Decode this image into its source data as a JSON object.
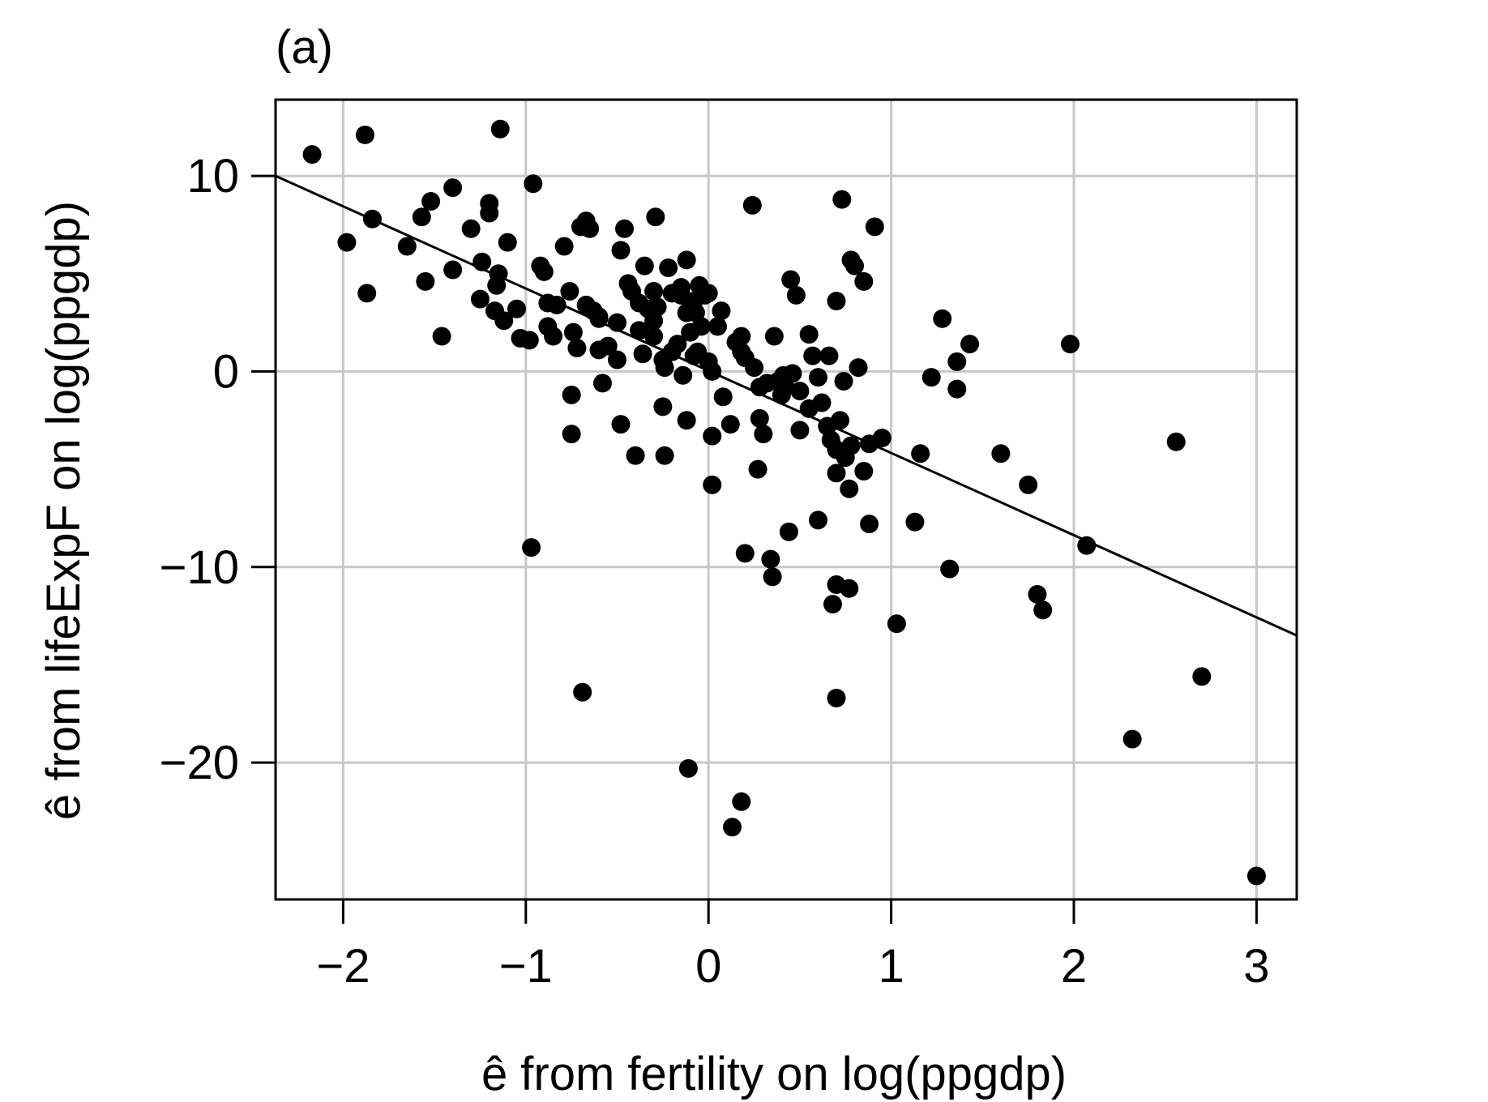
{
  "chart_data": {
    "type": "scatter",
    "panel_label": "(a)",
    "xlabel": "ê from fertility on log(ppgdp)",
    "ylabel": "ê from lifeExpF on log(ppgdp)",
    "xlim": [
      -2.37,
      3.22
    ],
    "ylim": [
      -27.0,
      13.9
    ],
    "xticks": [
      -2,
      -1,
      0,
      1,
      2,
      3
    ],
    "xtick_labels": [
      "−2",
      "−1",
      "0",
      "1",
      "2",
      "3"
    ],
    "yticks": [
      -20,
      -10,
      0,
      10
    ],
    "ytick_labels": [
      "−20",
      "−10",
      "0",
      "10"
    ],
    "grid": true,
    "fit_line": {
      "x": [
        -2.37,
        3.22
      ],
      "y": [
        10.0,
        -13.5
      ]
    },
    "points": [
      [
        -2.17,
        11.1
      ],
      [
        -1.88,
        12.1
      ],
      [
        -1.14,
        12.4
      ],
      [
        -1.98,
        6.6
      ],
      [
        -1.84,
        7.8
      ],
      [
        -1.87,
        4.0
      ],
      [
        -1.65,
        6.4
      ],
      [
        -1.57,
        7.9
      ],
      [
        -1.52,
        8.7
      ],
      [
        -1.4,
        9.4
      ],
      [
        -1.55,
        4.6
      ],
      [
        -1.46,
        1.8
      ],
      [
        -1.4,
        5.2
      ],
      [
        -1.3,
        7.3
      ],
      [
        -1.24,
        5.6
      ],
      [
        -1.2,
        8.6
      ],
      [
        -1.2,
        8.1
      ],
      [
        -1.25,
        3.7
      ],
      [
        -1.16,
        4.4
      ],
      [
        -1.15,
        5.0
      ],
      [
        -1.1,
        6.6
      ],
      [
        -1.17,
        3.1
      ],
      [
        -1.12,
        2.6
      ],
      [
        -1.05,
        3.2
      ],
      [
        -1.03,
        1.7
      ],
      [
        -0.98,
        1.6
      ],
      [
        -0.96,
        9.6
      ],
      [
        -0.92,
        5.4
      ],
      [
        -0.9,
        5.1
      ],
      [
        -0.88,
        3.5
      ],
      [
        -0.88,
        2.3
      ],
      [
        -0.85,
        1.8
      ],
      [
        -0.83,
        3.4
      ],
      [
        -0.79,
        6.4
      ],
      [
        -0.76,
        4.1
      ],
      [
        -0.74,
        2.0
      ],
      [
        -0.72,
        1.2
      ],
      [
        -0.67,
        3.4
      ],
      [
        -0.7,
        7.4
      ],
      [
        -0.67,
        7.7
      ],
      [
        -0.65,
        7.3
      ],
      [
        -0.63,
        3.1
      ],
      [
        -0.6,
        2.8
      ],
      [
        -0.55,
        1.3
      ],
      [
        -0.5,
        2.5
      ],
      [
        -0.48,
        6.2
      ],
      [
        -0.46,
        7.3
      ],
      [
        -0.44,
        4.5
      ],
      [
        -0.42,
        4.1
      ],
      [
        -0.38,
        2.1
      ],
      [
        -0.36,
        0.9
      ],
      [
        -0.35,
        5.4
      ],
      [
        -0.3,
        4.1
      ],
      [
        -0.28,
        3.3
      ],
      [
        -0.3,
        2.6
      ],
      [
        -0.29,
        7.9
      ],
      [
        -0.25,
        0.6
      ],
      [
        -0.22,
        5.3
      ],
      [
        -0.2,
        4.0
      ],
      [
        -0.17,
        1.4
      ],
      [
        -0.15,
        3.9
      ],
      [
        -0.12,
        3.0
      ],
      [
        -0.12,
        5.7
      ],
      [
        -0.1,
        2.0
      ],
      [
        -0.07,
        3.0
      ],
      [
        -0.05,
        4.4
      ],
      [
        -0.02,
        3.9
      ],
      [
        0.0,
        4.0
      ],
      [
        0.05,
        2.3
      ],
      [
        0.07,
        3.1
      ],
      [
        -0.08,
        0.8
      ],
      [
        0.0,
        0.5
      ],
      [
        0.02,
        0.0
      ],
      [
        -0.14,
        -0.2
      ],
      [
        -0.2,
        1.0
      ],
      [
        -0.24,
        0.2
      ],
      [
        -0.6,
        1.1
      ],
      [
        -0.58,
        -0.6
      ],
      [
        -0.75,
        -1.2
      ],
      [
        -0.6,
        2.7
      ],
      [
        -0.5,
        0.6
      ],
      [
        -0.48,
        -2.7
      ],
      [
        -0.4,
        -4.3
      ],
      [
        -0.25,
        -1.8
      ],
      [
        -0.24,
        -4.3
      ],
      [
        -0.12,
        -2.5
      ],
      [
        -0.75,
        -3.2
      ],
      [
        0.02,
        -3.3
      ],
      [
        0.08,
        -1.3
      ],
      [
        0.12,
        -2.7
      ],
      [
        0.15,
        1.5
      ],
      [
        0.18,
        1.8
      ],
      [
        0.2,
        0.7
      ],
      [
        0.24,
        8.5
      ],
      [
        0.25,
        0.2
      ],
      [
        0.28,
        -0.8
      ],
      [
        0.28,
        -2.4
      ],
      [
        0.3,
        -3.2
      ],
      [
        0.27,
        -5.0
      ],
      [
        0.32,
        -0.6
      ],
      [
        0.36,
        1.8
      ],
      [
        0.38,
        -0.5
      ],
      [
        0.4,
        -1.2
      ],
      [
        0.42,
        -0.8
      ],
      [
        0.45,
        4.7
      ],
      [
        0.48,
        3.9
      ],
      [
        0.46,
        -0.1
      ],
      [
        0.5,
        -1.0
      ],
      [
        0.5,
        -3.0
      ],
      [
        0.55,
        1.9
      ],
      [
        0.57,
        0.8
      ],
      [
        0.6,
        -0.3
      ],
      [
        0.62,
        -1.6
      ],
      [
        0.65,
        -2.8
      ],
      [
        0.66,
        0.8
      ],
      [
        0.67,
        -3.5
      ],
      [
        0.7,
        -4.0
      ],
      [
        0.72,
        -2.5
      ],
      [
        0.74,
        -0.5
      ],
      [
        0.75,
        -4.4
      ],
      [
        0.78,
        -3.8
      ],
      [
        0.8,
        5.4
      ],
      [
        0.82,
        0.2
      ],
      [
        0.85,
        4.6
      ],
      [
        0.85,
        -5.1
      ],
      [
        0.7,
        -5.2
      ],
      [
        0.77,
        -6.0
      ],
      [
        0.6,
        -7.6
      ],
      [
        0.44,
        -8.2
      ],
      [
        0.34,
        -9.6
      ],
      [
        0.35,
        -10.5
      ],
      [
        0.2,
        -9.3
      ],
      [
        0.7,
        -10.9
      ],
      [
        0.77,
        -11.1
      ],
      [
        0.68,
        -11.9
      ],
      [
        0.88,
        -7.8
      ],
      [
        0.88,
        -3.7
      ],
      [
        0.95,
        -3.4
      ],
      [
        0.73,
        8.8
      ],
      [
        0.91,
        7.4
      ],
      [
        0.78,
        5.7
      ],
      [
        0.7,
        3.6
      ],
      [
        1.13,
        -7.7
      ],
      [
        1.16,
        -4.2
      ],
      [
        1.22,
        -0.3
      ],
      [
        1.28,
        2.7
      ],
      [
        1.36,
        0.5
      ],
      [
        1.36,
        -0.9
      ],
      [
        1.43,
        1.4
      ],
      [
        1.32,
        -10.1
      ],
      [
        1.03,
        -12.9
      ],
      [
        0.7,
        -16.7
      ],
      [
        1.6,
        -4.2
      ],
      [
        1.75,
        -5.8
      ],
      [
        1.8,
        -11.4
      ],
      [
        1.83,
        -12.2
      ],
      [
        1.98,
        1.4
      ],
      [
        2.07,
        -8.9
      ],
      [
        2.32,
        -18.8
      ],
      [
        2.56,
        -3.6
      ],
      [
        2.7,
        -15.6
      ],
      [
        3.0,
        -25.8
      ],
      [
        -0.97,
        -9.0
      ],
      [
        -0.69,
        -16.4
      ],
      [
        -0.11,
        -20.3
      ],
      [
        0.18,
        -22.0
      ],
      [
        0.13,
        -23.3
      ],
      [
        0.02,
        -5.8
      ],
      [
        -0.06,
        1.0
      ],
      [
        0.41,
        -0.2
      ],
      [
        0.55,
        -1.9
      ],
      [
        -0.3,
        1.8
      ],
      [
        -0.38,
        3.5
      ],
      [
        -0.15,
        4.3
      ],
      [
        -0.08,
        3.6
      ],
      [
        0.18,
        1.0
      ],
      [
        -0.04,
        2.3
      ],
      [
        -0.33,
        3.2
      ]
    ]
  }
}
